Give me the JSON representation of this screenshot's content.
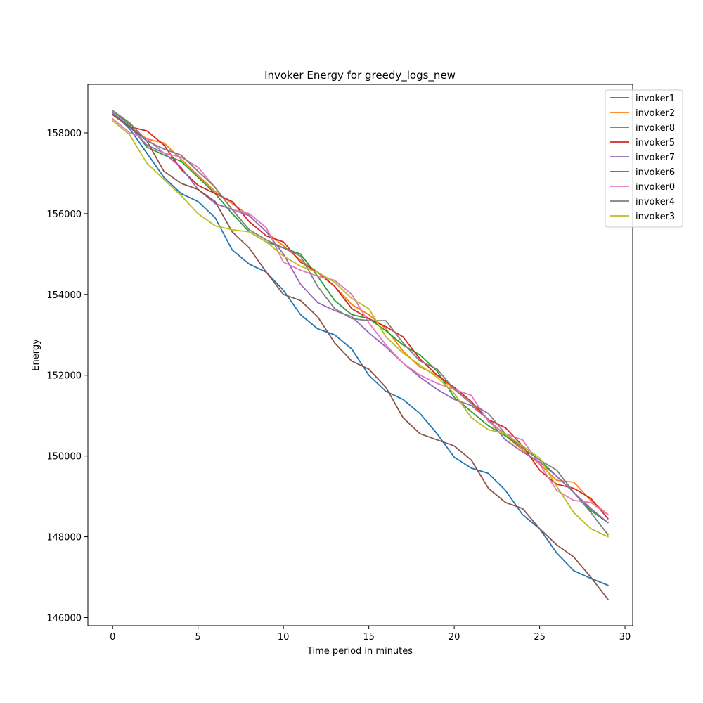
{
  "chart_data": {
    "type": "line",
    "title": "Invoker Energy for greedy_logs_new",
    "xlabel": "Time period in minutes",
    "ylabel": "Energy",
    "xlim": [
      -1.45,
      30.45
    ],
    "ylim": [
      145800,
      159200
    ],
    "xticks": [
      0,
      5,
      10,
      15,
      20,
      25,
      30
    ],
    "yticks": [
      146000,
      148000,
      150000,
      152000,
      154000,
      156000,
      158000
    ],
    "grid": false,
    "legend_position": "top-right",
    "x": [
      0,
      1,
      2,
      3,
      4,
      5,
      6,
      7,
      8,
      9,
      10,
      11,
      12,
      13,
      14,
      15,
      16,
      17,
      18,
      19,
      20,
      21,
      22,
      23,
      24,
      25,
      26,
      27,
      28,
      29
    ],
    "series": [
      {
        "name": "invoker1",
        "color": "#1f77b4",
        "values": [
          158500,
          158100,
          157500,
          156900,
          156500,
          156300,
          155900,
          155100,
          154750,
          154550,
          154100,
          153500,
          153150,
          153000,
          152650,
          152000,
          151600,
          151400,
          151050,
          150550,
          149970,
          149700,
          149570,
          149150,
          148550,
          148200,
          147600,
          147160,
          146970,
          146800
        ]
      },
      {
        "name": "invoker2",
        "color": "#ff7f0e",
        "values": [
          158450,
          158150,
          157850,
          157750,
          157350,
          156950,
          156550,
          156250,
          155950,
          155550,
          155200,
          154850,
          154550,
          154200,
          153750,
          153500,
          153150,
          152600,
          152200,
          152000,
          151650,
          151300,
          150900,
          150500,
          150150,
          149800,
          149400,
          149350,
          148900,
          148550
        ]
      },
      {
        "name": "invoker8",
        "color": "#2ca02c",
        "values": [
          158550,
          158200,
          157650,
          157450,
          157300,
          156900,
          156500,
          156000,
          155550,
          155300,
          155150,
          155000,
          154450,
          153850,
          153500,
          153400,
          153100,
          152750,
          152500,
          152100,
          151450,
          151100,
          150750,
          150500,
          150200,
          149900,
          149500,
          149100,
          148650,
          148350
        ]
      },
      {
        "name": "invoker5",
        "color": "#d62728",
        "values": [
          158450,
          158150,
          158050,
          157700,
          157100,
          156700,
          156500,
          156300,
          155800,
          155450,
          155300,
          154800,
          154550,
          154200,
          153650,
          153400,
          153200,
          152950,
          152400,
          152000,
          151700,
          151350,
          150900,
          150700,
          150250,
          149650,
          149300,
          149200,
          148950,
          148450
        ]
      },
      {
        "name": "invoker7",
        "color": "#9467bd",
        "values": [
          158500,
          158150,
          157700,
          157500,
          157150,
          156600,
          156250,
          156100,
          155950,
          155550,
          155000,
          154250,
          153800,
          153600,
          153450,
          153050,
          152700,
          152300,
          151950,
          151650,
          151400,
          151250,
          150900,
          150400,
          150100,
          149850,
          149500,
          149100,
          148700,
          148350
        ]
      },
      {
        "name": "invoker6",
        "color": "#8c564b",
        "values": [
          158450,
          158150,
          157800,
          157050,
          156750,
          156600,
          156300,
          155550,
          155150,
          154550,
          154000,
          153850,
          153450,
          152800,
          152350,
          152150,
          151700,
          150950,
          150550,
          150400,
          150250,
          149900,
          149200,
          148850,
          148700,
          148200,
          147800,
          147500,
          147000,
          146450
        ]
      },
      {
        "name": "invoker0",
        "color": "#e377c2",
        "values": [
          158350,
          158000,
          157850,
          157500,
          157400,
          157150,
          156650,
          156100,
          156000,
          155650,
          154800,
          154600,
          154450,
          154350,
          154000,
          153300,
          152750,
          152300,
          152000,
          151800,
          151650,
          151500,
          150850,
          150550,
          150400,
          149800,
          149150,
          148900,
          148850,
          148550
        ]
      },
      {
        "name": "invoker4",
        "color": "#7f7f7f",
        "values": [
          158550,
          158250,
          157800,
          157600,
          157450,
          157050,
          156650,
          156100,
          155600,
          155350,
          155150,
          154950,
          154200,
          153650,
          153400,
          153350,
          153350,
          152800,
          152350,
          152150,
          151650,
          151300,
          151050,
          150550,
          150200,
          149900,
          149650,
          149100,
          148600,
          148050
        ]
      },
      {
        "name": "invoker3",
        "color": "#bcbd22",
        "values": [
          158300,
          157950,
          157250,
          156850,
          156450,
          156000,
          155700,
          155600,
          155550,
          155300,
          154950,
          154700,
          154550,
          154300,
          153900,
          153650,
          152950,
          152550,
          152250,
          151950,
          151550,
          150950,
          150650,
          150550,
          150250,
          149950,
          149250,
          148600,
          148200,
          148000
        ]
      }
    ]
  }
}
